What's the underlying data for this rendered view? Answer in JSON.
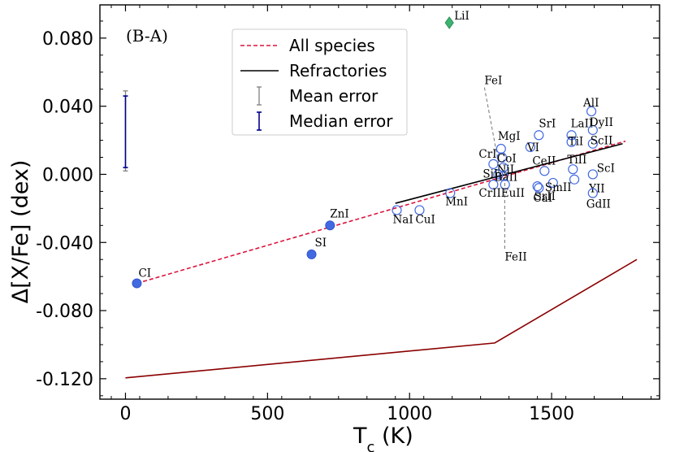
{
  "chart_data": {
    "type": "scatter",
    "panel_label": "(B-A)",
    "xlabel_main": "T",
    "xlabel_sub": "c",
    "xlabel_unit": " (K)",
    "ylabel": "Δ[X/Fe] (dex)",
    "xlim": [
      -90,
      1880
    ],
    "ylim": [
      -0.132,
      0.0995
    ],
    "xticks": [
      0,
      500,
      1000,
      1500
    ],
    "yticks": [
      0.08,
      0.04,
      0.0,
      -0.04,
      -0.08,
      -0.12
    ],
    "ytick_labels": [
      "0.080",
      "0.040",
      "0.000",
      "-0.040",
      "-0.080",
      "-0.120"
    ],
    "legend": {
      "position": "top-center",
      "entries": [
        {
          "label": "All species",
          "style": "dashed",
          "color": "#dc143c"
        },
        {
          "label": "Refractories",
          "style": "solid",
          "color": "#000000"
        },
        {
          "label": "Mean error",
          "style": "errorbar",
          "color": "#808080"
        },
        {
          "label": "Median error",
          "style": "errorbar",
          "color": "#00008b"
        }
      ]
    },
    "fits": [
      {
        "name": "All species",
        "x": [
          40,
          1760
        ],
        "y": [
          -0.064,
          0.0195
        ]
      },
      {
        "name": "Refractories",
        "x": [
          950,
          1750
        ],
        "y": [
          -0.017,
          0.018
        ]
      }
    ],
    "limit_line": {
      "x": [
        0,
        1300,
        1800
      ],
      "y": [
        -0.1195,
        -0.099,
        -0.05
      ]
    },
    "error_bars": [
      {
        "name": "Mean error",
        "x": 0,
        "low": 0.002,
        "high": 0.049
      },
      {
        "name": "Median error",
        "x": 0,
        "low": 0.004,
        "high": 0.046
      }
    ],
    "species_volatile": [
      {
        "name": "CI",
        "x": 40,
        "y": -0.064
      },
      {
        "name": "SI",
        "x": 655,
        "y": -0.047
      },
      {
        "name": "ZnI",
        "x": 720,
        "y": -0.03
      }
    ],
    "species_highlight": [
      {
        "name": "LiI",
        "x": 1140,
        "y": 0.089
      }
    ],
    "species_refractory": [
      {
        "name": "NaI",
        "x": 955,
        "y": -0.021
      },
      {
        "name": "CuI",
        "x": 1035,
        "y": -0.021
      },
      {
        "name": "MnI",
        "x": 1143,
        "y": -0.011
      },
      {
        "name": "CrI",
        "x": 1295,
        "y": 0.006
      },
      {
        "name": "CrII",
        "x": 1295,
        "y": -0.006
      },
      {
        "name": "SiI",
        "x": 1312,
        "y": 0.0
      },
      {
        "name": "MgI",
        "x": 1322,
        "y": 0.015
      },
      {
        "name": "CoI",
        "x": 1325,
        "y": 0.01
      },
      {
        "name": "NiI",
        "x": 1330,
        "y": 0.004
      },
      {
        "name": "BaII",
        "x": 1330,
        "y": -0.001
      },
      {
        "name": "EuII",
        "x": 1336,
        "y": -0.006
      },
      {
        "name": "VI",
        "x": 1425,
        "y": 0.016
      },
      {
        "name": "SrI",
        "x": 1455,
        "y": 0.023
      },
      {
        "name": "SrII",
        "x": 1450,
        "y": -0.007
      },
      {
        "name": "CaI",
        "x": 1455,
        "y": -0.008
      },
      {
        "name": "CeII",
        "x": 1475,
        "y": 0.002
      },
      {
        "name": "SmII",
        "x": 1505,
        "y": -0.005
      },
      {
        "name": "LaII",
        "x": 1570,
        "y": 0.023
      },
      {
        "name": "TiI",
        "x": 1570,
        "y": 0.019
      },
      {
        "name": "TiII",
        "x": 1575,
        "y": 0.003
      },
      {
        "name": "YII",
        "x": 1580,
        "y": -0.003
      },
      {
        "name": "AlI",
        "x": 1640,
        "y": 0.037
      },
      {
        "name": "DyII",
        "x": 1645,
        "y": 0.026
      },
      {
        "name": "ScII",
        "x": 1645,
        "y": 0.018
      },
      {
        "name": "ScI",
        "x": 1645,
        "y": 0.0
      },
      {
        "name": "GdII",
        "x": 1645,
        "y": -0.011
      }
    ],
    "fe_markers": [
      {
        "name": "FeI",
        "x": 1315,
        "y_top": 0.051,
        "y_bottom": 0.005
      },
      {
        "name": "FeII",
        "x": 1335,
        "y_top": 0.005,
        "y_bottom": -0.044
      }
    ]
  }
}
